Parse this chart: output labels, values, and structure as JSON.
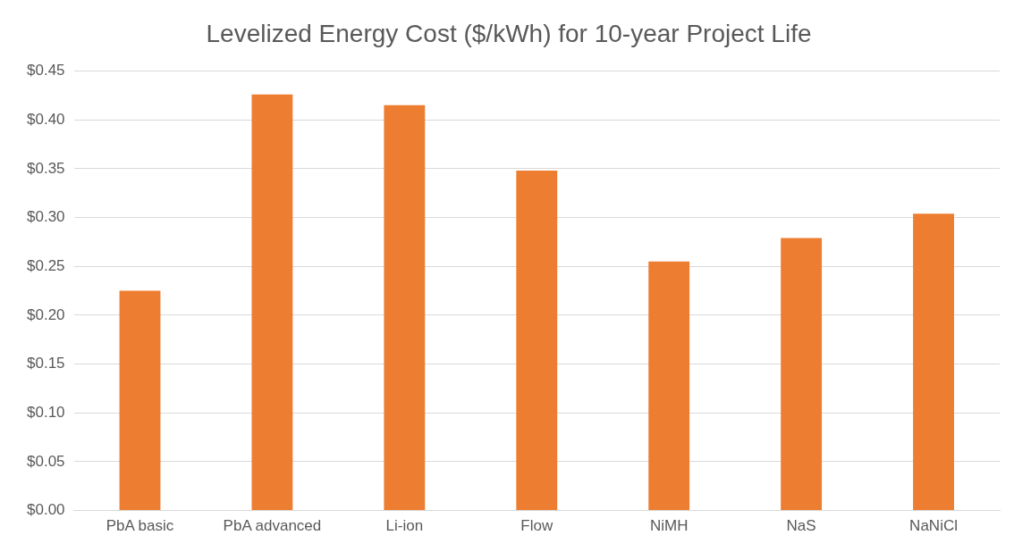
{
  "chart_data": {
    "type": "bar",
    "title": "Levelized Energy Cost ($/kWh) for 10-year Project Life",
    "categories": [
      "PbA basic",
      "PbA advanced",
      "Li-ion",
      "Flow",
      "NiMH",
      "NaS",
      "NaNiCl"
    ],
    "values": [
      0.225,
      0.426,
      0.415,
      0.348,
      0.255,
      0.279,
      0.304
    ],
    "color": "#ed7d31",
    "ylim": [
      0,
      0.45
    ],
    "yticks": [
      {
        "value": 0,
        "label": "$0.00"
      },
      {
        "value": 0.05,
        "label": "$0.05"
      },
      {
        "value": 0.1,
        "label": "$0.10"
      },
      {
        "value": 0.15,
        "label": "$0.15"
      },
      {
        "value": 0.2,
        "label": "$0.20"
      },
      {
        "value": 0.25,
        "label": "$0.25"
      },
      {
        "value": 0.3,
        "label": "$0.30"
      },
      {
        "value": 0.35,
        "label": "$0.35"
      },
      {
        "value": 0.4,
        "label": "$0.40"
      },
      {
        "value": 0.45,
        "label": "$0.45"
      }
    ],
    "grid": "y"
  }
}
